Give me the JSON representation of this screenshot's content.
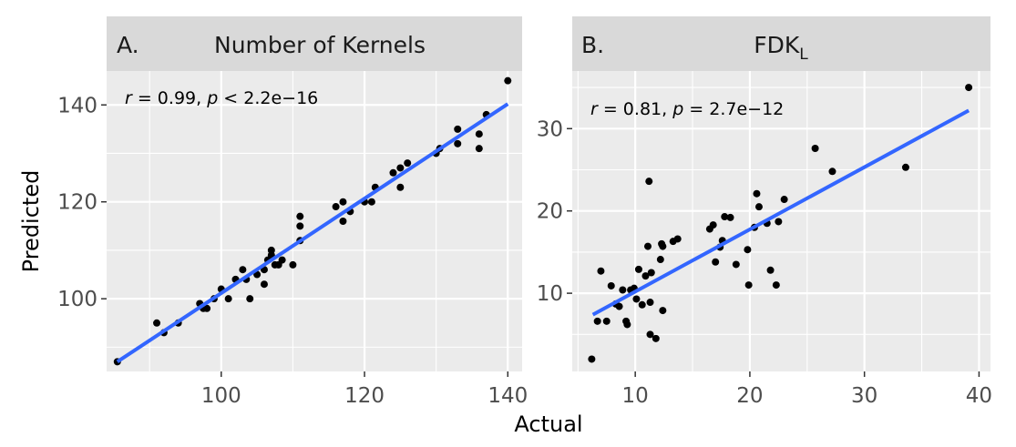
{
  "axis_labels": {
    "x": "Actual",
    "y": "Predicted"
  },
  "chart_data": [
    {
      "type": "scatter",
      "panel_letter": "A.",
      "title": "Number of Kernels",
      "stat": {
        "r_label": "r",
        "r_text": " = 0.99, ",
        "p_label": "p",
        "p_text": " < 2.2e−16"
      },
      "xlim": [
        84,
        142
      ],
      "ylim": [
        85,
        147
      ],
      "xticks": [
        100,
        120,
        140
      ],
      "yticks": [
        100,
        120,
        140
      ],
      "x_minor": [
        90,
        110,
        130
      ],
      "y_minor": [
        90,
        110,
        130
      ],
      "fit_line": {
        "x": [
          85.5,
          140
        ],
        "y": [
          87,
          140.2
        ]
      },
      "points": [
        [
          85.5,
          87
        ],
        [
          91,
          95
        ],
        [
          92,
          93
        ],
        [
          94,
          95
        ],
        [
          97,
          99
        ],
        [
          97.5,
          98
        ],
        [
          98,
          98
        ],
        [
          99,
          100
        ],
        [
          100,
          102
        ],
        [
          101,
          100
        ],
        [
          102,
          104
        ],
        [
          103,
          106
        ],
        [
          103.5,
          104
        ],
        [
          104,
          100
        ],
        [
          105,
          105
        ],
        [
          106,
          103
        ],
        [
          106,
          106
        ],
        [
          106.5,
          108
        ],
        [
          107,
          110
        ],
        [
          107,
          109
        ],
        [
          107.5,
          107
        ],
        [
          108,
          107
        ],
        [
          108.5,
          108
        ],
        [
          110,
          107
        ],
        [
          111,
          117
        ],
        [
          111,
          115
        ],
        [
          111,
          112
        ],
        [
          116,
          119
        ],
        [
          117,
          120
        ],
        [
          117,
          116
        ],
        [
          118,
          118
        ],
        [
          120,
          120
        ],
        [
          121,
          120
        ],
        [
          121.5,
          123
        ],
        [
          124,
          126
        ],
        [
          125,
          127
        ],
        [
          125,
          123
        ],
        [
          126,
          128
        ],
        [
          130,
          130
        ],
        [
          130.5,
          131
        ],
        [
          133,
          135
        ],
        [
          133,
          132
        ],
        [
          136,
          131
        ],
        [
          136,
          134
        ],
        [
          137,
          138
        ],
        [
          140,
          145
        ]
      ]
    },
    {
      "type": "scatter",
      "panel_letter": "B.",
      "title": "FDK",
      "title_subscript": "L",
      "stat": {
        "r_label": "r",
        "r_text": " = 0.81, ",
        "p_label": "p",
        "p_text": " = 2.7e−12"
      },
      "xlim": [
        4.5,
        41
      ],
      "ylim": [
        0.5,
        37
      ],
      "xticks": [
        10,
        20,
        30,
        40
      ],
      "yticks": [
        10,
        20,
        30
      ],
      "x_minor": [
        5,
        15,
        25,
        35
      ],
      "y_minor": [
        5,
        15,
        25,
        35
      ],
      "fit_line": {
        "x": [
          6.3,
          39.1
        ],
        "y": [
          7.4,
          32.2
        ]
      },
      "points": [
        [
          6.2,
          2.0
        ],
        [
          6.7,
          6.6
        ],
        [
          7.0,
          12.7
        ],
        [
          7.5,
          6.6
        ],
        [
          7.9,
          10.9
        ],
        [
          8.3,
          8.7
        ],
        [
          8.6,
          8.4
        ],
        [
          8.9,
          10.4
        ],
        [
          9.2,
          6.6
        ],
        [
          9.3,
          6.2
        ],
        [
          9.6,
          10.4
        ],
        [
          9.9,
          10.6
        ],
        [
          10.1,
          9.3
        ],
        [
          10.3,
          12.9
        ],
        [
          10.6,
          8.6
        ],
        [
          10.9,
          12.1
        ],
        [
          11.1,
          15.7
        ],
        [
          11.2,
          23.6
        ],
        [
          11.3,
          8.9
        ],
        [
          11.4,
          12.5
        ],
        [
          11.3,
          5.0
        ],
        [
          11.8,
          4.5
        ],
        [
          12.2,
          14.1
        ],
        [
          12.3,
          16.0
        ],
        [
          12.4,
          7.9
        ],
        [
          12.4,
          15.7
        ],
        [
          13.3,
          16.3
        ],
        [
          13.7,
          16.6
        ],
        [
          16.5,
          17.8
        ],
        [
          16.8,
          18.3
        ],
        [
          17.0,
          13.8
        ],
        [
          17.4,
          15.6
        ],
        [
          17.8,
          19.3
        ],
        [
          17.6,
          16.4
        ],
        [
          18.3,
          19.2
        ],
        [
          18.8,
          13.5
        ],
        [
          19.8,
          15.3
        ],
        [
          19.9,
          11.0
        ],
        [
          20.4,
          18.0
        ],
        [
          20.6,
          22.1
        ],
        [
          20.8,
          20.5
        ],
        [
          21.5,
          18.5
        ],
        [
          21.8,
          12.8
        ],
        [
          22.3,
          11.0
        ],
        [
          22.5,
          18.7
        ],
        [
          23.0,
          21.4
        ],
        [
          25.7,
          27.6
        ],
        [
          27.2,
          24.8
        ],
        [
          33.6,
          25.3
        ],
        [
          39.1,
          35.0
        ]
      ]
    }
  ]
}
